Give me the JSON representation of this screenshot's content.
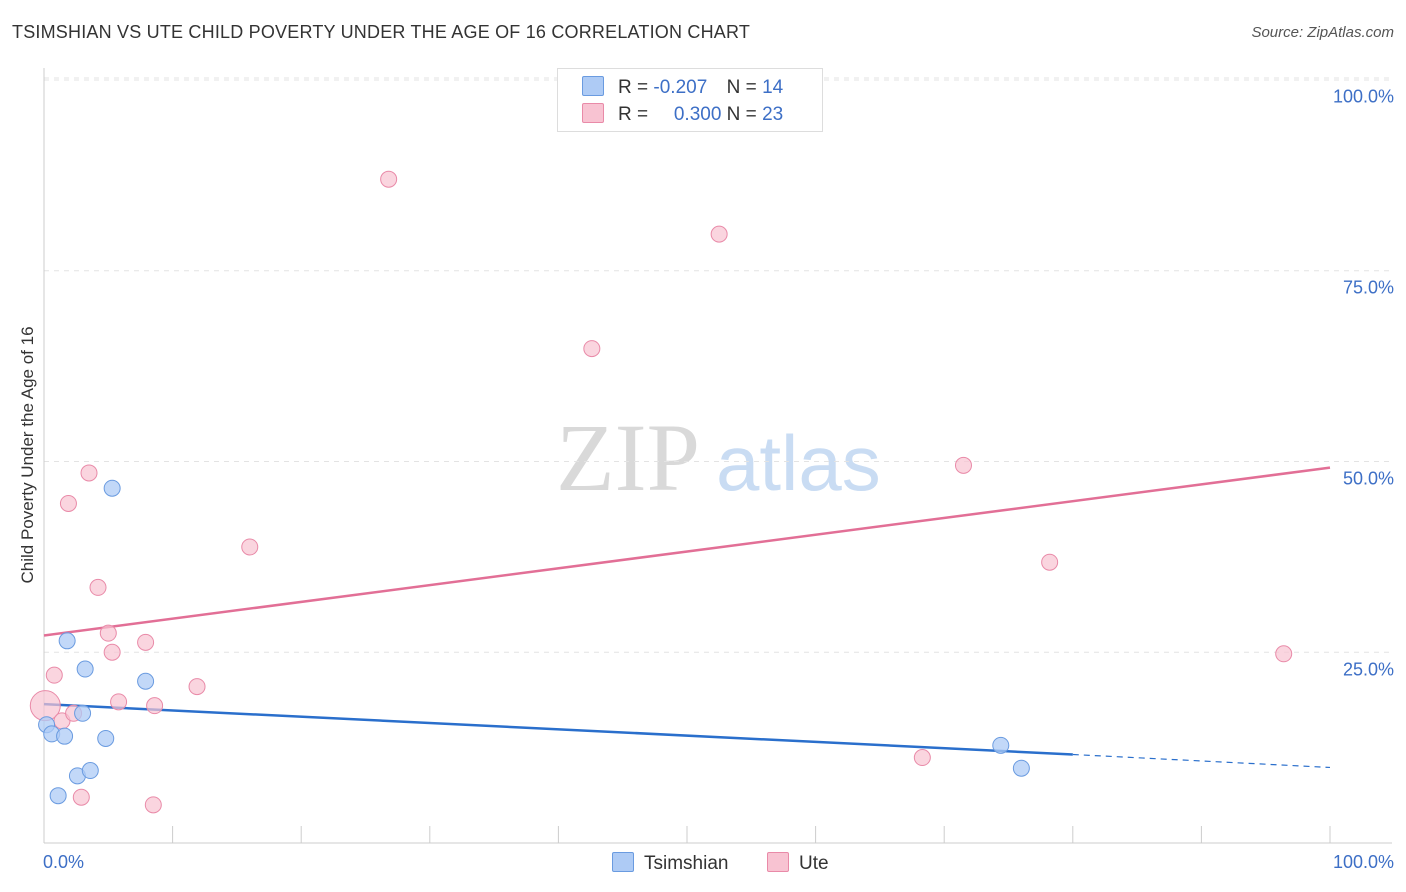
{
  "header": {
    "title": "TSIMSHIAN VS UTE CHILD POVERTY UNDER THE AGE OF 16 CORRELATION CHART",
    "source": "Source: ZipAtlas.com"
  },
  "legend": {
    "rows": [
      {
        "r_label": "R =",
        "r_value": "-0.207",
        "n_label": "N =",
        "n_value": "14"
      },
      {
        "r_label": "R =",
        "r_value": "0.300",
        "n_label": "N =",
        "n_value": "23"
      }
    ]
  },
  "bottom_legend": [
    "Tsimshian",
    "Ute"
  ],
  "colors": {
    "tsimshian_fill": "#aecbf5",
    "tsimshian_stroke": "#6a9be0",
    "tsimshian_line": "#2a6fcc",
    "ute_fill": "#f8c3d2",
    "ute_stroke": "#e98aa8",
    "ute_line": "#e26f96",
    "tick_text": "#3d6fc6"
  },
  "chart_data": {
    "type": "scatter",
    "title": "TSIMSHIAN VS UTE CHILD POVERTY UNDER THE AGE OF 16 CORRELATION CHART",
    "xlabel": "",
    "ylabel": "Child Poverty Under the Age of 16",
    "xlim": [
      0,
      100
    ],
    "ylim": [
      0,
      100
    ],
    "x_tick_labels": [
      "0.0%",
      "100.0%"
    ],
    "y_tick_labels": [
      "100.0%",
      "75.0%",
      "50.0%",
      "25.0%"
    ],
    "y_ticks": [
      100,
      75,
      50,
      25
    ],
    "watermark": {
      "zip": "ZIP",
      "atlas": "atlas"
    },
    "series": [
      {
        "name": "Tsimshian",
        "r": -0.207,
        "n": 14,
        "points": [
          {
            "x": 0.2,
            "y": 15.5
          },
          {
            "x": 0.6,
            "y": 14.3
          },
          {
            "x": 1.1,
            "y": 6.2
          },
          {
            "x": 1.6,
            "y": 14.0
          },
          {
            "x": 1.8,
            "y": 26.5
          },
          {
            "x": 2.6,
            "y": 8.8
          },
          {
            "x": 3.0,
            "y": 17.0
          },
          {
            "x": 3.2,
            "y": 22.8
          },
          {
            "x": 3.6,
            "y": 9.5
          },
          {
            "x": 4.8,
            "y": 13.7
          },
          {
            "x": 5.3,
            "y": 46.5
          },
          {
            "x": 7.9,
            "y": 21.2
          },
          {
            "x": 74.4,
            "y": 12.8
          },
          {
            "x": 76.0,
            "y": 9.8
          }
        ],
        "trend": {
          "x1": 0,
          "y1": 18.2,
          "x2": 80,
          "y2": 11.6,
          "dashed_to_x": 100,
          "dashed_to_y": 9.9
        }
      },
      {
        "name": "Ute",
        "r": 0.3,
        "n": 23,
        "points": [
          {
            "x": 0.1,
            "y": 18.0
          },
          {
            "x": 0.8,
            "y": 22.0
          },
          {
            "x": 1.4,
            "y": 16.0
          },
          {
            "x": 1.9,
            "y": 44.5
          },
          {
            "x": 2.3,
            "y": 17.0
          },
          {
            "x": 2.9,
            "y": 6.0
          },
          {
            "x": 3.5,
            "y": 48.5
          },
          {
            "x": 4.2,
            "y": 33.5
          },
          {
            "x": 5.0,
            "y": 27.5
          },
          {
            "x": 5.3,
            "y": 25.0
          },
          {
            "x": 5.8,
            "y": 18.5
          },
          {
            "x": 7.9,
            "y": 26.3
          },
          {
            "x": 8.5,
            "y": 5.0
          },
          {
            "x": 8.6,
            "y": 18.0
          },
          {
            "x": 11.9,
            "y": 20.5
          },
          {
            "x": 16.0,
            "y": 38.8
          },
          {
            "x": 26.8,
            "y": 87.0
          },
          {
            "x": 42.6,
            "y": 64.8
          },
          {
            "x": 52.5,
            "y": 79.8
          },
          {
            "x": 68.3,
            "y": 11.2
          },
          {
            "x": 71.5,
            "y": 49.5
          },
          {
            "x": 78.2,
            "y": 36.8
          },
          {
            "x": 96.4,
            "y": 24.8
          }
        ],
        "trend": {
          "x1": 0,
          "y1": 27.2,
          "x2": 100,
          "y2": 49.2
        }
      }
    ]
  }
}
